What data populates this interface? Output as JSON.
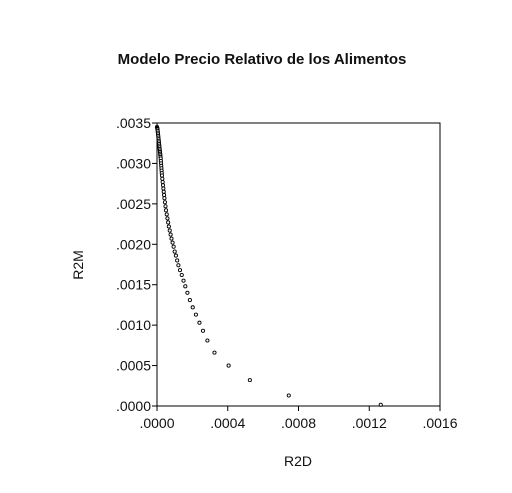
{
  "chart_data": {
    "type": "scatter",
    "title": "Modelo Precio Relativo de los Alimentos",
    "xlabel": "R2D",
    "ylabel": "R2M",
    "xlim": [
      0,
      0.0016
    ],
    "ylim": [
      0,
      0.0035
    ],
    "xticks": [
      ".0000",
      ".0004",
      ".0008",
      ".0012",
      ".0016"
    ],
    "yticks": [
      ".0000",
      ".0005",
      ".0010",
      ".0015",
      ".0020",
      ".0025",
      ".0030",
      ".0035"
    ],
    "grid": false,
    "legend": "none",
    "marker": "hollow-circle",
    "points": [
      [
        0.0,
        0.00345
      ],
      [
        1e-06,
        0.00344
      ],
      [
        2e-06,
        0.00343
      ],
      [
        3e-06,
        0.00342
      ],
      [
        4e-06,
        0.0034
      ],
      [
        5e-06,
        0.00338
      ],
      [
        6e-06,
        0.00336
      ],
      [
        7e-06,
        0.00334
      ],
      [
        8e-06,
        0.00332
      ],
      [
        9e-06,
        0.0033
      ],
      [
        1e-05,
        0.00328
      ],
      [
        1.1e-05,
        0.00326
      ],
      [
        1.2e-05,
        0.00324
      ],
      [
        1.3e-05,
        0.00322
      ],
      [
        1.4e-05,
        0.0032
      ],
      [
        1.5e-05,
        0.00318
      ],
      [
        1.6e-05,
        0.00316
      ],
      [
        1.7e-05,
        0.00314
      ],
      [
        1.8e-05,
        0.00312
      ],
      [
        1.9e-05,
        0.0031
      ],
      [
        2e-05,
        0.00308
      ],
      [
        2.1e-05,
        0.00306
      ],
      [
        2.2e-05,
        0.00303
      ],
      [
        2.3e-05,
        0.003
      ],
      [
        2.4e-05,
        0.00297
      ],
      [
        2.5e-05,
        0.00294
      ],
      [
        2.6e-05,
        0.00291
      ],
      [
        2.7e-05,
        0.00288
      ],
      [
        2.8e-05,
        0.00285
      ],
      [
        3e-05,
        0.00281
      ],
      [
        3.2e-05,
        0.00277
      ],
      [
        3.4e-05,
        0.00273
      ],
      [
        3.6e-05,
        0.00269
      ],
      [
        3.8e-05,
        0.00265
      ],
      [
        4e-05,
        0.00261
      ],
      [
        4.2e-05,
        0.00257
      ],
      [
        4.5e-05,
        0.00252
      ],
      [
        4.8e-05,
        0.00247
      ],
      [
        5.1e-05,
        0.00242
      ],
      [
        5.5e-05,
        0.00237
      ],
      [
        5.9e-05,
        0.00232
      ],
      [
        6.3e-05,
        0.00227
      ],
      [
        6.7e-05,
        0.00222
      ],
      [
        7.2e-05,
        0.00217
      ],
      [
        7.7e-05,
        0.00212
      ],
      [
        8.2e-05,
        0.00207
      ],
      [
        8.8e-05,
        0.00202
      ],
      [
        9.4e-05,
        0.00197
      ],
      [
        0.0001,
        0.00191
      ],
      [
        0.000107,
        0.00186
      ],
      [
        0.000114,
        0.0018
      ],
      [
        0.000121,
        0.00174
      ],
      [
        0.00013,
        0.00168
      ],
      [
        0.00014,
        0.00162
      ],
      [
        0.00015,
        0.00155
      ],
      [
        0.00016,
        0.00148
      ],
      [
        0.000172,
        0.0014
      ],
      [
        0.000186,
        0.00131
      ],
      [
        0.000202,
        0.00122
      ],
      [
        0.00022,
        0.00113
      ],
      [
        0.00024,
        0.00103
      ],
      [
        0.00026,
        0.00093
      ],
      [
        0.000285,
        0.00081
      ],
      [
        0.000325,
        0.00066
      ],
      [
        0.000405,
        0.0005
      ],
      [
        0.000525,
        0.00032
      ],
      [
        0.000745,
        0.00013
      ],
      [
        0.001265,
        1.5e-05
      ]
    ]
  }
}
